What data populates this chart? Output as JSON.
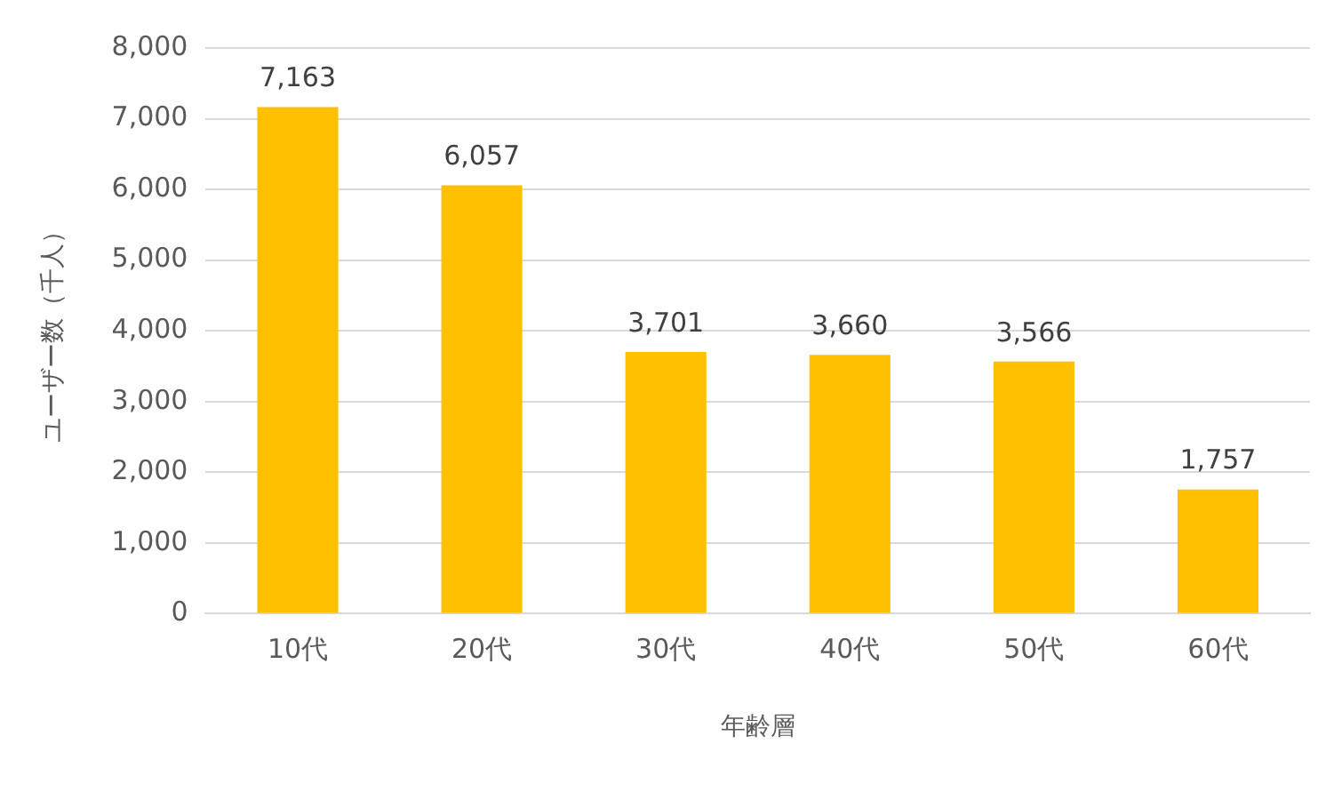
{
  "chart_data": {
    "type": "bar",
    "xlabel": "年齢層",
    "ylabel": "ユーザー数（千人）",
    "categories": [
      "10代",
      "20代",
      "30代",
      "40代",
      "50代",
      "60代"
    ],
    "values": [
      7163,
      6057,
      3701,
      3660,
      3566,
      1757
    ],
    "color": "#ffc000",
    "ylim": [
      0,
      8000
    ],
    "yticks": [
      {
        "value": 0,
        "label": "0"
      },
      {
        "value": 1000,
        "label": "1,000"
      },
      {
        "value": 2000,
        "label": "2,000"
      },
      {
        "value": 3000,
        "label": "3,000"
      },
      {
        "value": 4000,
        "label": "4,000"
      },
      {
        "value": 5000,
        "label": "5,000"
      },
      {
        "value": 6000,
        "label": "6,000"
      },
      {
        "value": 7000,
        "label": "7,000"
      },
      {
        "value": 8000,
        "label": "8,000"
      }
    ],
    "value_labels": [
      "7,163",
      "6,057",
      "3,701",
      "3,660",
      "3,566",
      "1,757"
    ],
    "grid": "y"
  }
}
